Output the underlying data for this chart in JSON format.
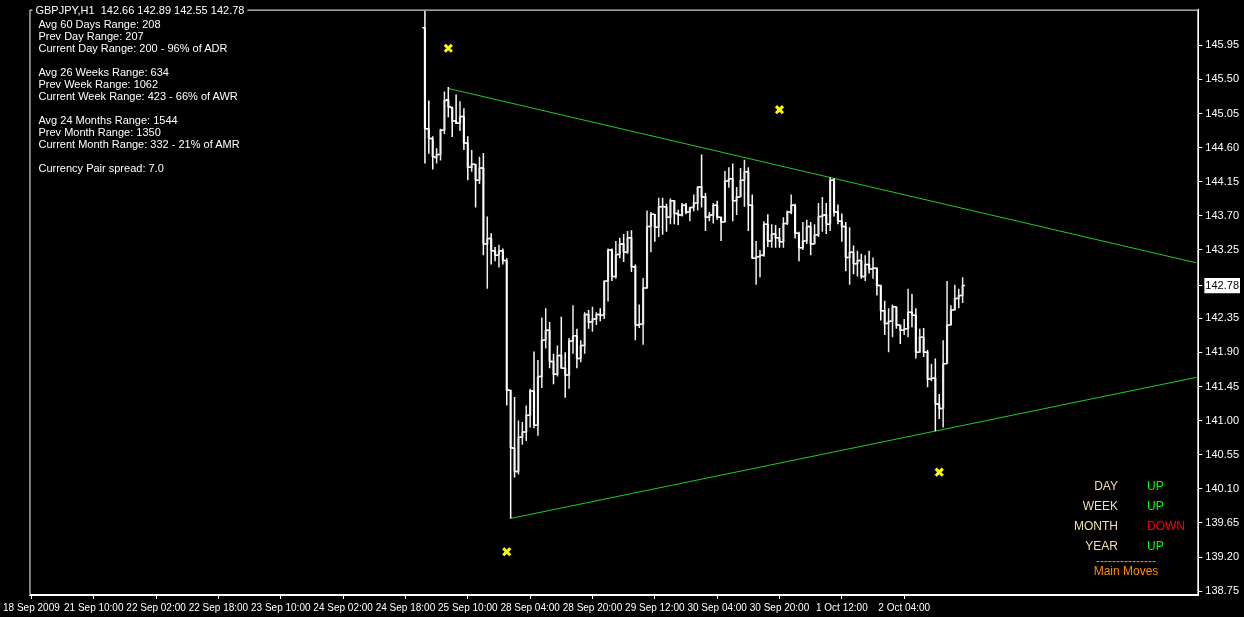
{
  "chart_data": {
    "type": "candlestick",
    "title": "GBPJPY,H1  142.66 142.89 142.55 142.78",
    "colors": [
      null,
      null,
      null,
      null,
      null,
      null,
      null,
      null,
      null,
      null,
      null,
      null,
      null,
      null,
      null,
      null,
      null,
      null,
      null,
      null,
      null,
      null,
      null,
      null,
      null,
      null,
      null,
      null,
      null,
      null,
      null,
      null,
      null,
      null,
      null,
      null,
      null,
      null,
      null,
      null,
      null,
      null,
      null,
      null,
      null,
      null,
      null,
      null,
      null,
      null,
      null,
      null,
      null,
      null,
      null,
      null,
      null,
      null,
      null,
      null,
      null,
      null,
      null,
      null,
      null,
      null,
      null,
      null,
      null,
      null,
      null,
      null,
      null,
      null,
      null,
      null,
      null,
      null,
      null,
      null,
      null,
      null,
      null,
      null,
      null,
      null,
      null,
      null,
      null,
      null,
      null,
      null,
      null,
      null,
      null,
      null,
      null,
      null,
      null,
      null,
      null,
      "#ffffff",
      "#ffffff",
      "#ffffff",
      "#ececec",
      "#ececec",
      "#ececec",
      "#ffffff",
      "#ffffff",
      "#ffffff",
      "#ececec",
      "#ffffff",
      "#ffffff",
      "#ececec",
      "#ffffff",
      "#ececec",
      "#ffffff",
      "#ececec",
      "#ffffff",
      "#ffffff",
      "#ececec",
      "#ffffff",
      "#ffffff",
      "#ffffff",
      "#ffffff",
      "#ececec",
      "#ececec",
      "#ececec",
      "#ececec",
      "#ffffff",
      "#ececec",
      "#ececec",
      "#ececec",
      "#ffffff",
      "#ffffff",
      "#ececec",
      "#ffffff",
      "#ffffff",
      "#ececec",
      "#ececec",
      "#ffffff",
      "#ececec",
      "#ececec",
      "#ffffff",
      "#ececec",
      "#ececec",
      "#ffffff",
      "#ececec",
      "#ececec",
      "#ffffff",
      "#ececec",
      "#ececec",
      "#ffffff",
      "#ececec",
      "#ffffff",
      "#ffffff",
      "#ececec",
      "#ececec",
      "#ececec",
      "#ececec",
      "#ffffff",
      "#ececec",
      "#ffffff",
      "#ffffff",
      "#ececec",
      "#ffffff",
      "#ffffff",
      "#ececec",
      "#ffffff",
      "#ececec",
      "#ececec",
      "#ececec",
      "#ffffff",
      "#ffffff",
      "#ececec",
      "#ececec",
      "#ffffff",
      "#ffffff",
      "#ececec",
      "#ececec",
      "#ffffff",
      "#ececec",
      "#ececec",
      "#ececec",
      "#ffffff",
      "#ffffff",
      "#ececec",
      "#ececec",
      "#ececec",
      "#ffffff",
      "#ececec",
      "#ffffff",
      "#ffffff",
      "#ececec",
      "#ececec",
      "#ececec",
      "#ffffff",
      "#ffffff",
      "#ececec",
      "#ececec",
      "#ffffff",
      "#ececec",
      "#ececec",
      "#ececec",
      "#ffffff",
      "#ececec",
      "#ffffff",
      "#ffffff",
      "#ffffff",
      "#ffffff",
      "#ececec",
      "#ffffff",
      "#ececec",
      "#ffffff",
      "#ececec",
      "#ffffff",
      "#ececec",
      "#ffffff",
      "#ffffff",
      "#ffffff",
      "#ececec",
      "#ececec",
      "#ffffff",
      "#ffffff",
      "#ececec",
      "#ececec",
      "#ffffff",
      "#ffffff",
      "#ececec",
      "#ffffff",
      "#ffffff",
      "#ececec",
      "#ffffff",
      "#ffffff",
      "#ececec",
      "#ececec",
      "#ececec",
      "#ececec",
      "#ececec",
      "#ececec",
      null,
      null,
      null,
      null,
      null,
      null,
      null,
      null,
      null,
      null,
      null,
      null,
      null,
      null,
      null,
      null,
      null,
      null,
      null,
      null,
      null,
      null,
      null,
      null,
      null,
      null,
      null,
      null,
      null,
      null,
      null,
      null,
      null,
      null,
      null,
      null,
      null,
      null,
      null,
      null,
      null,
      null,
      null,
      null,
      null,
      null,
      null,
      null,
      null,
      null,
      null,
      null,
      null,
      null,
      null,
      null,
      null,
      null,
      null,
      null
    ],
    "annotations": [
      "Avg 60 Days Range: 208",
      "Prev Day Range: 207",
      "Current Day Range: 200 - 96% of ADR",
      "Avg 26 Weeks Range: 634",
      "Prev Week Range: 1062",
      "Current Week Range: 423 - 66% of AWR",
      "Avg 24 Months Range: 1544",
      "Prev Month Range: 1350",
      "Current Month Range: 332 - 21% of AMR",
      "Currency Pair spread: 7.0",
      "DAY",
      "UP",
      "WEEK",
      "UP",
      "MONTH",
      "DOWN",
      "YEAR",
      "UP",
      "---------------",
      "Main Moves"
    ],
    "categories": [
      "18 Sep 2009",
      null,
      null,
      null,
      null,
      null,
      null,
      null,
      null,
      null,
      null,
      null,
      null,
      null,
      null,
      null,
      "21 Sep 10:00",
      null,
      null,
      null,
      null,
      null,
      null,
      null,
      null,
      null,
      null,
      null,
      null,
      null,
      null,
      null,
      "22 Sep 02:00",
      null,
      null,
      null,
      null,
      null,
      null,
      null,
      null,
      null,
      null,
      null,
      null,
      null,
      null,
      null,
      "22 Sep 18:00",
      null,
      null,
      null,
      null,
      null,
      null,
      null,
      null,
      null,
      null,
      null,
      null,
      null,
      null,
      null,
      "23 Sep 10:00",
      null,
      null,
      null,
      null,
      null,
      null,
      null,
      null,
      null,
      null,
      null,
      null,
      null,
      null,
      null,
      "24 Sep 02:00",
      null,
      null,
      null,
      null,
      null,
      null,
      null,
      null,
      null,
      null,
      null,
      null,
      null,
      null,
      null,
      "24 Sep 18:00",
      null,
      null,
      null,
      null,
      null,
      null,
      null,
      null,
      null,
      null,
      null,
      null,
      null,
      null,
      null,
      "25 Sep 10:00",
      null,
      null,
      null,
      null,
      null,
      null,
      null,
      null,
      null,
      null,
      null,
      null,
      null,
      null,
      null,
      "28 Sep 04:00",
      null,
      null,
      null,
      null,
      null,
      null,
      null,
      null,
      null,
      null,
      null,
      null,
      null,
      null,
      null,
      "28 Sep 20:00",
      null,
      null,
      null,
      null,
      null,
      null,
      null,
      null,
      null,
      null,
      null,
      null,
      null,
      null,
      null,
      "29 Sep 12:00",
      null,
      null,
      null,
      null,
      null,
      null,
      null,
      null,
      null,
      null,
      null,
      null,
      null,
      null,
      null,
      "30 Sep 04:00",
      null,
      null,
      null,
      null,
      null,
      null,
      null,
      null,
      null,
      null,
      null,
      null,
      null,
      null,
      null,
      "30 Sep 20:00",
      null,
      null,
      null,
      null,
      null,
      null,
      null,
      null,
      null,
      null,
      null,
      null,
      null,
      null,
      null,
      "1 Oct 12:00",
      null,
      null,
      null,
      null,
      null,
      null,
      null,
      null,
      null,
      null,
      null,
      null,
      null,
      null,
      null,
      "2 Oct 04:00",
      null,
      null,
      null,
      null,
      null,
      null,
      null,
      null,
      null,
      null,
      null,
      null,
      null,
      null,
      null,
      null,
      null,
      null,
      null,
      null,
      null,
      null,
      null,
      null,
      null,
      null,
      null,
      null,
      null,
      null,
      null,
      null,
      null,
      null,
      null,
      null,
      null,
      null,
      null,
      null,
      null,
      null,
      null,
      null,
      null,
      null,
      null,
      null,
      null,
      null,
      null,
      null,
      null,
      null,
      null,
      null,
      null,
      null,
      null,
      null,
      null,
      null,
      null,
      null,
      null,
      null,
      null,
      null,
      null,
      null,
      null,
      null,
      null,
      null,
      null
    ],
    "ohlc": [
      null,
      null,
      null,
      null,
      null,
      null,
      null,
      null,
      null,
      null,
      null,
      null,
      null,
      null,
      null,
      null,
      null,
      null,
      null,
      null,
      null,
      null,
      null,
      null,
      null,
      null,
      null,
      null,
      null,
      null,
      null,
      null,
      null,
      null,
      null,
      null,
      null,
      null,
      null,
      null,
      null,
      null,
      null,
      null,
      null,
      null,
      null,
      null,
      null,
      null,
      null,
      null,
      null,
      null,
      null,
      null,
      null,
      null,
      null,
      null,
      null,
      null,
      null,
      null,
      null,
      null,
      null,
      null,
      null,
      null,
      null,
      null,
      null,
      null,
      null,
      null,
      null,
      null,
      null,
      null,
      null,
      null,
      null,
      null,
      null,
      null,
      null,
      null,
      null,
      null,
      null,
      null,
      null,
      null,
      null,
      null,
      null,
      null,
      null,
      null,
      null,
      [
        146.18,
        146.4,
        144.39,
        144.85
      ],
      [
        144.85,
        145.22,
        144.52,
        144.72
      ],
      [
        144.72,
        144.75,
        144.31,
        144.48
      ],
      [
        144.47,
        144.59,
        144.39,
        144.51
      ],
      [
        144.51,
        144.85,
        144.43,
        144.83
      ],
      [
        144.83,
        145.34,
        144.78,
        145.22
      ],
      [
        145.23,
        145.4,
        145.0,
        145.14
      ],
      [
        145.13,
        145.14,
        144.74,
        144.95
      ],
      [
        144.95,
        145.3,
        144.91,
        144.92
      ],
      [
        144.92,
        145.21,
        144.82,
        145.01
      ],
      [
        145.01,
        145.12,
        144.57,
        144.66
      ],
      [
        144.66,
        144.75,
        144.17,
        144.34
      ],
      [
        144.34,
        144.57,
        144.28,
        144.38
      ],
      [
        144.38,
        144.38,
        143.81,
        144.17
      ],
      [
        144.17,
        144.48,
        144.12,
        144.33
      ],
      [
        144.33,
        144.53,
        143.18,
        143.33
      ],
      [
        143.33,
        143.69,
        142.74,
        143.4
      ],
      [
        143.4,
        143.47,
        143.06,
        143.24
      ],
      [
        143.24,
        143.29,
        143.1,
        143.18
      ],
      [
        143.18,
        143.32,
        143.02,
        143.24
      ],
      [
        143.24,
        143.27,
        143.06,
        143.11
      ],
      [
        143.11,
        143.14,
        141.2,
        141.4
      ],
      [
        141.4,
        141.4,
        139.71,
        140.64
      ],
      [
        140.64,
        141.31,
        140.25,
        140.33
      ],
      [
        140.33,
        141.0,
        140.29,
        140.78
      ],
      [
        140.78,
        140.98,
        140.68,
        140.85
      ],
      [
        140.85,
        141.2,
        140.73,
        141.07
      ],
      [
        141.07,
        141.42,
        140.91,
        141.39
      ],
      [
        141.39,
        141.91,
        140.9,
        140.94
      ],
      [
        140.94,
        141.8,
        140.8,
        141.58
      ],
      [
        141.58,
        142.36,
        141.43,
        142.06
      ],
      [
        142.06,
        142.48,
        141.95,
        142.19
      ],
      [
        142.19,
        142.3,
        141.69,
        141.78
      ],
      [
        141.78,
        141.88,
        141.48,
        141.61
      ],
      [
        141.61,
        141.99,
        141.58,
        141.86
      ],
      [
        141.86,
        142.37,
        141.69,
        141.69
      ],
      [
        141.69,
        141.9,
        141.3,
        141.6
      ],
      [
        141.6,
        142.09,
        141.42,
        142.05
      ],
      [
        142.05,
        142.52,
        141.88,
        142.12
      ],
      [
        142.12,
        142.21,
        141.69,
        141.82
      ],
      [
        141.82,
        142.06,
        141.77,
        141.99
      ],
      [
        141.99,
        142.43,
        141.88,
        142.4
      ],
      [
        142.4,
        142.46,
        142.21,
        142.3
      ],
      [
        142.3,
        142.5,
        142.17,
        142.34
      ],
      [
        142.34,
        142.43,
        142.26,
        142.4
      ],
      [
        142.4,
        142.48,
        142.31,
        142.39
      ],
      [
        142.39,
        142.84,
        142.34,
        142.84
      ],
      [
        142.84,
        143.27,
        142.57,
        143.25
      ],
      [
        143.25,
        143.27,
        142.84,
        142.9
      ],
      [
        142.9,
        143.37,
        142.87,
        143.19
      ],
      [
        143.19,
        143.41,
        143.14,
        143.33
      ],
      [
        143.33,
        143.46,
        143.09,
        143.22
      ],
      [
        143.22,
        143.5,
        143.2,
        143.41
      ],
      [
        143.41,
        143.51,
        142.96,
        143.03
      ],
      [
        143.03,
        143.06,
        142.06,
        142.26
      ],
      [
        142.26,
        142.53,
        142.22,
        142.27
      ],
      [
        142.27,
        142.88,
        142.0,
        142.75
      ],
      [
        142.75,
        143.77,
        142.74,
        143.56
      ],
      [
        143.56,
        143.75,
        143.22,
        143.72
      ],
      [
        143.72,
        143.72,
        143.36,
        143.55
      ],
      [
        143.55,
        143.94,
        143.42,
        143.82
      ],
      [
        143.82,
        143.94,
        143.45,
        143.82
      ],
      [
        143.82,
        143.86,
        143.49,
        143.68
      ],
      [
        143.68,
        143.93,
        143.59,
        143.9
      ],
      [
        143.9,
        143.91,
        143.59,
        143.73
      ],
      [
        143.73,
        143.78,
        143.58,
        143.71
      ],
      [
        143.71,
        143.87,
        143.69,
        143.84
      ],
      [
        143.84,
        143.87,
        143.72,
        143.75
      ],
      [
        143.75,
        143.82,
        143.63,
        143.81
      ],
      [
        143.81,
        143.98,
        143.76,
        143.87
      ],
      [
        143.87,
        144.09,
        143.77,
        144.08
      ],
      [
        144.08,
        144.51,
        143.81,
        143.95
      ],
      [
        143.95,
        144.0,
        143.5,
        143.68
      ],
      [
        143.68,
        143.75,
        143.63,
        143.71
      ],
      [
        143.71,
        143.87,
        143.6,
        143.84
      ],
      [
        143.84,
        143.9,
        143.65,
        143.68
      ],
      [
        143.68,
        143.69,
        143.37,
        143.62
      ],
      [
        143.62,
        144.29,
        143.62,
        144.16
      ],
      [
        144.16,
        144.34,
        144.07,
        144.19
      ],
      [
        144.19,
        144.39,
        143.63,
        143.9
      ],
      [
        143.9,
        144.08,
        143.71,
        143.95
      ],
      [
        143.95,
        144.33,
        143.95,
        144.17
      ],
      [
        144.17,
        144.44,
        143.82,
        144.28
      ],
      [
        144.28,
        144.34,
        143.5,
        143.84
      ],
      [
        143.84,
        143.98,
        143.14,
        143.14
      ],
      [
        143.14,
        143.37,
        142.79,
        143.16
      ],
      [
        143.16,
        143.25,
        142.89,
        143.18
      ],
      [
        143.18,
        143.63,
        143.16,
        143.59
      ],
      [
        143.59,
        143.72,
        143.29,
        143.37
      ],
      [
        143.37,
        143.59,
        143.28,
        143.46
      ],
      [
        143.46,
        143.58,
        143.28,
        143.41
      ],
      [
        143.41,
        143.54,
        143.28,
        143.36
      ],
      [
        143.36,
        143.68,
        143.28,
        143.6
      ],
      [
        143.6,
        143.77,
        143.58,
        143.75
      ],
      [
        143.75,
        143.98,
        143.72,
        143.84
      ],
      [
        143.84,
        143.86,
        143.4,
        143.47
      ],
      [
        143.47,
        143.49,
        143.1,
        143.28
      ],
      [
        143.28,
        143.62,
        143.25,
        143.37
      ],
      [
        143.37,
        143.65,
        143.33,
        143.56
      ],
      [
        143.56,
        143.62,
        143.18,
        143.33
      ],
      [
        143.33,
        143.59,
        143.33,
        143.45
      ],
      [
        143.45,
        143.87,
        143.42,
        143.69
      ],
      [
        143.69,
        143.95,
        143.49,
        143.71
      ],
      [
        143.71,
        143.87,
        143.46,
        143.59
      ],
      [
        143.59,
        144.21,
        143.5,
        144.17
      ],
      [
        144.17,
        144.2,
        143.69,
        143.75
      ],
      [
        143.75,
        143.85,
        143.59,
        143.63
      ],
      [
        143.63,
        143.73,
        143.36,
        143.56
      ],
      [
        143.56,
        143.62,
        142.97,
        143.15
      ],
      [
        143.15,
        143.55,
        142.79,
        143.22
      ],
      [
        143.22,
        143.31,
        142.93,
        143.07
      ],
      [
        143.07,
        143.24,
        142.9,
        143.11
      ],
      [
        143.11,
        143.2,
        142.87,
        142.9
      ],
      [
        142.9,
        143.18,
        142.84,
        143.06
      ],
      [
        143.06,
        143.24,
        142.94,
        143.0
      ],
      [
        143.0,
        143.15,
        142.87,
        143.01
      ],
      [
        143.01,
        143.02,
        142.65,
        142.78
      ],
      [
        142.78,
        142.79,
        142.32,
        142.45
      ],
      [
        142.45,
        142.58,
        142.13,
        142.28
      ],
      [
        142.28,
        142.48,
        141.9,
        142.31
      ],
      [
        142.31,
        142.53,
        142.1,
        142.5
      ],
      [
        142.5,
        142.5,
        142.21,
        142.26
      ],
      [
        142.26,
        142.26,
        142.01,
        142.19
      ],
      [
        142.19,
        142.34,
        142.13,
        142.21
      ],
      [
        142.21,
        142.74,
        142.1,
        142.43
      ],
      [
        142.43,
        142.67,
        142.23,
        142.39
      ],
      [
        142.39,
        142.48,
        141.82,
        141.9
      ],
      [
        141.9,
        142.21,
        141.9,
        142.1
      ],
      [
        142.1,
        142.22,
        141.84,
        141.9
      ],
      [
        141.9,
        141.93,
        141.44,
        141.55
      ],
      [
        141.55,
        141.75,
        141.52,
        141.56
      ],
      [
        141.56,
        141.82,
        140.86,
        141.22
      ],
      [
        141.22,
        141.35,
        141.02,
        141.16
      ],
      [
        141.16,
        142.06,
        140.91,
        141.75
      ],
      [
        141.75,
        142.84,
        141.75,
        142.26
      ],
      [
        142.26,
        142.52,
        142.26,
        142.46
      ],
      [
        142.46,
        142.79,
        142.46,
        142.61
      ],
      [
        142.61,
        142.74,
        142.48,
        142.65
      ],
      [
        142.65,
        142.89,
        142.55,
        142.78
      ],
      null,
      null,
      null,
      null,
      null,
      null,
      null,
      null,
      null,
      null,
      null,
      null,
      null,
      null,
      null,
      null,
      null,
      null,
      null,
      null,
      null,
      null,
      null,
      null,
      null,
      null,
      null,
      null,
      null,
      null,
      null,
      null,
      null,
      null,
      null,
      null,
      null,
      null,
      null,
      null,
      null,
      null,
      null,
      null,
      null,
      null,
      null,
      null,
      null,
      null,
      null,
      null,
      null,
      null,
      null,
      null,
      null,
      null,
      null,
      null
    ],
    "series": [
      {
        "type": "line",
        "color": "#22cc22",
        "values": [
          null,
          null,
          null,
          null,
          null,
          null,
          null,
          null,
          null,
          null,
          null,
          null,
          null,
          null,
          null,
          null,
          null,
          null,
          null,
          null,
          null,
          null,
          null,
          null,
          null,
          null,
          null,
          null,
          null,
          null,
          null,
          null,
          null,
          null,
          null,
          null,
          null,
          null,
          null,
          null,
          null,
          null,
          null,
          null,
          null,
          null,
          null,
          null,
          null,
          null,
          null,
          null,
          null,
          null,
          null,
          null,
          null,
          null,
          null,
          null,
          null,
          null,
          null,
          null,
          null,
          null,
          null,
          null,
          null,
          null,
          null,
          null,
          null,
          null,
          null,
          null,
          null,
          null,
          null,
          null,
          null,
          null,
          null,
          null,
          null,
          null,
          null,
          null,
          null,
          null,
          null,
          null,
          null,
          null,
          null,
          null,
          null,
          null,
          null,
          null,
          null,
          null,
          null,
          null,
          null,
          null,
          null,
          145.38,
          null,
          null,
          null,
          null,
          null,
          null,
          null,
          null,
          null,
          null,
          null,
          null,
          null,
          null,
          null,
          null,
          null,
          null,
          null,
          null,
          null,
          null,
          null,
          null,
          null,
          null,
          null,
          null,
          null,
          null,
          null,
          null,
          null,
          null,
          null,
          null,
          null,
          null,
          null,
          null,
          null,
          null,
          null,
          null,
          null,
          null,
          null,
          null,
          null,
          null,
          null,
          null,
          null,
          null,
          null,
          null,
          null,
          null,
          null,
          null,
          null,
          null,
          null,
          null,
          null,
          null,
          null,
          null,
          null,
          null,
          null,
          null,
          null,
          null,
          null,
          null,
          null,
          null,
          null,
          null,
          null,
          null,
          null,
          null,
          null,
          null,
          null,
          null,
          null,
          null,
          null,
          null,
          null,
          null,
          null,
          null,
          null,
          null,
          null,
          null,
          null,
          null,
          null,
          null,
          null,
          null,
          null,
          null,
          null,
          null,
          null,
          null,
          null,
          null,
          null,
          null,
          null,
          null,
          null,
          null,
          null,
          null,
          null,
          null,
          null,
          null,
          null,
          null,
          null,
          null,
          null,
          null,
          null,
          null,
          null,
          null,
          null,
          null,
          null,
          null,
          null,
          null,
          null,
          null,
          null,
          null,
          null,
          null,
          null,
          null,
          null,
          null,
          null,
          null,
          null,
          null,
          null,
          null,
          null,
          null,
          null,
          null,
          null,
          null,
          null,
          null,
          null,
          null,
          null,
          null,
          null,
          null,
          null,
          null,
          null,
          null,
          null,
          null,
          null,
          null,
          null,
          null,
          null,
          null,
          null,
          null,
          null,
          null,
          null,
          null,
          null,
          143.08
        ]
      },
      {
        "type": "line",
        "color": "#22cc22",
        "values": [
          null,
          null,
          null,
          null,
          null,
          null,
          null,
          null,
          null,
          null,
          null,
          null,
          null,
          null,
          null,
          null,
          null,
          null,
          null,
          null,
          null,
          null,
          null,
          null,
          null,
          null,
          null,
          null,
          null,
          null,
          null,
          null,
          null,
          null,
          null,
          null,
          null,
          null,
          null,
          null,
          null,
          null,
          null,
          null,
          null,
          null,
          null,
          null,
          null,
          null,
          null,
          null,
          null,
          null,
          null,
          null,
          null,
          null,
          null,
          null,
          null,
          null,
          null,
          null,
          null,
          null,
          null,
          null,
          null,
          null,
          null,
          null,
          null,
          null,
          null,
          null,
          null,
          null,
          null,
          null,
          null,
          null,
          null,
          null,
          null,
          null,
          null,
          null,
          null,
          null,
          null,
          null,
          null,
          null,
          null,
          null,
          null,
          null,
          null,
          null,
          null,
          null,
          null,
          null,
          null,
          null,
          null,
          null,
          null,
          null,
          null,
          null,
          null,
          null,
          null,
          null,
          null,
          null,
          null,
          null,
          null,
          null,
          null,
          139.71,
          null,
          null,
          null,
          null,
          null,
          null,
          null,
          null,
          null,
          null,
          null,
          null,
          null,
          null,
          null,
          null,
          null,
          null,
          null,
          null,
          null,
          null,
          null,
          null,
          null,
          null,
          null,
          null,
          null,
          null,
          null,
          null,
          null,
          null,
          null,
          null,
          null,
          null,
          null,
          null,
          null,
          null,
          null,
          null,
          null,
          null,
          null,
          null,
          null,
          null,
          null,
          null,
          null,
          null,
          null,
          null,
          null,
          null,
          null,
          null,
          null,
          null,
          null,
          null,
          null,
          null,
          null,
          null,
          null,
          null,
          null,
          null,
          null,
          null,
          null,
          null,
          null,
          null,
          null,
          null,
          null,
          null,
          null,
          null,
          null,
          null,
          null,
          null,
          null,
          null,
          null,
          null,
          null,
          null,
          null,
          null,
          null,
          null,
          null,
          null,
          null,
          null,
          null,
          null,
          null,
          null,
          null,
          null,
          null,
          null,
          null,
          null,
          null,
          null,
          null,
          null,
          null,
          null,
          null,
          null,
          null,
          null,
          null,
          null,
          null,
          null,
          null,
          null,
          null,
          null,
          null,
          null,
          null,
          null,
          null,
          null,
          null,
          null,
          null,
          null,
          null,
          null,
          null,
          null,
          null,
          null,
          null,
          null,
          null,
          null,
          null,
          null,
          null,
          null,
          null,
          null,
          null,
          null,
          null,
          null,
          null,
          null,
          null,
          null,
          null,
          null,
          null,
          null,
          null,
          null,
          null,
          null,
          null,
          null,
          null,
          141.57
        ]
      },
      {
        "type": "scatter",
        "color": "#ffff00",
        "marker": "cross",
        "values": [
          null,
          null,
          null,
          null,
          null,
          null,
          null,
          null,
          null,
          null,
          null,
          null,
          null,
          null,
          null,
          null,
          null,
          null,
          null,
          null,
          null,
          null,
          null,
          null,
          null,
          null,
          null,
          null,
          null,
          null,
          null,
          null,
          null,
          null,
          null,
          null,
          null,
          null,
          null,
          null,
          null,
          null,
          null,
          null,
          null,
          null,
          null,
          null,
          null,
          null,
          null,
          null,
          null,
          null,
          null,
          null,
          null,
          null,
          null,
          null,
          null,
          null,
          null,
          null,
          null,
          null,
          null,
          null,
          null,
          null,
          null,
          null,
          null,
          null,
          null,
          null,
          null,
          null,
          null,
          null,
          null,
          null,
          null,
          null,
          null,
          null,
          null,
          null,
          null,
          null,
          null,
          null,
          null,
          null,
          null,
          null,
          null,
          null,
          null,
          null,
          null,
          null,
          null,
          null,
          null,
          null,
          null,
          145.91,
          null,
          null,
          null,
          null,
          null,
          null,
          null,
          null,
          null,
          null,
          null,
          null,
          null,
          null,
          139.27,
          null,
          null,
          null,
          null,
          null,
          null,
          null,
          null,
          null,
          null,
          null,
          null,
          null,
          null,
          null,
          null,
          null,
          null,
          null,
          null,
          null,
          null,
          null,
          null,
          null,
          null,
          null,
          null,
          null,
          null,
          null,
          null,
          null,
          null,
          null,
          null,
          null,
          null,
          null,
          null,
          null,
          null,
          null,
          null,
          null,
          null,
          null,
          null,
          null,
          null,
          null,
          null,
          null,
          null,
          null,
          null,
          null,
          null,
          null,
          null,
          null,
          null,
          null,
          null,
          null,
          null,
          null,
          null,
          null,
          145.1,
          null,
          null,
          null,
          null,
          null,
          null,
          null,
          null,
          null,
          null,
          null,
          null,
          null,
          null,
          null,
          null,
          null,
          null,
          null,
          null,
          null,
          null,
          null,
          null,
          null,
          null,
          null,
          null,
          null,
          null,
          null,
          null,
          null,
          null,
          null,
          null,
          null,
          null,
          null,
          null,
          140.32,
          null,
          null,
          null,
          null,
          null,
          null,
          null,
          null,
          null,
          null,
          null,
          null,
          null,
          null,
          null,
          null,
          null,
          null,
          null,
          null,
          null,
          null,
          null,
          null,
          null,
          null,
          null,
          null,
          null,
          null,
          null,
          null,
          null,
          null,
          null,
          null,
          null,
          null,
          null,
          null,
          null,
          null,
          null,
          null,
          null,
          null,
          null,
          null,
          null,
          null,
          null,
          null,
          null,
          null,
          null,
          null,
          null,
          null,
          null,
          null,
          null,
          null,
          null,
          null,
          null,
          null
        ]
      }
    ],
    "ylim": [
      138.7,
      146.42
    ],
    "yticks": [
      {
        "value": 138.75,
        "label": "138.75"
      },
      {
        "value": 139.2,
        "label": "139.20"
      },
      {
        "value": 139.65,
        "label": "139.65"
      },
      {
        "value": 140.1,
        "label": "140.10"
      },
      {
        "value": 140.55,
        "label": "140.55"
      },
      {
        "value": 141,
        "label": "141.00"
      },
      {
        "value": 141.45,
        "label": "141.45"
      },
      {
        "value": 141.9,
        "label": "141.90"
      },
      {
        "value": 142.35,
        "label": "142.35"
      },
      {
        "value": 142.78,
        "label": "142.78"
      },
      {
        "value": 143.25,
        "label": "143.25"
      },
      {
        "value": 143.7,
        "label": "143.70"
      },
      {
        "value": 144.15,
        "label": "144.15"
      },
      {
        "value": 144.6,
        "label": "144.60"
      },
      {
        "value": 145.05,
        "label": "145.05"
      },
      {
        "value": 145.5,
        "label": "145.50"
      },
      {
        "value": 145.95,
        "label": "145.95"
      }
    ]
  }
}
